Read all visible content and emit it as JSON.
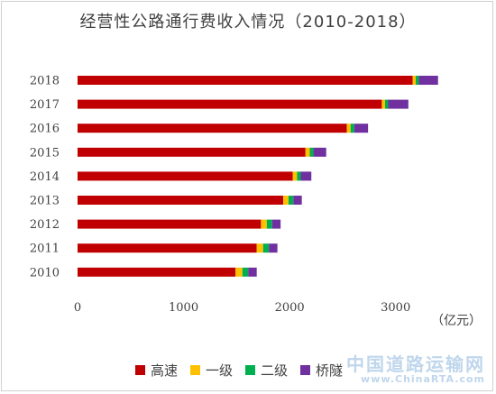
{
  "chart_data": {
    "type": "bar",
    "orientation": "horizontal",
    "stacked": true,
    "title": "经营性公路通行费收入情况（2010-2018）",
    "unit_label": "（亿元）",
    "categories": [
      "2010",
      "2011",
      "2012",
      "2013",
      "2014",
      "2015",
      "2016",
      "2017",
      "2018"
    ],
    "series": [
      {
        "name": "高速",
        "color": "#c00000",
        "values": [
          1490,
          1690,
          1730,
          1940,
          2030,
          2150,
          2540,
          2870,
          3160
        ]
      },
      {
        "name": "一级",
        "color": "#ffc000",
        "values": [
          65,
          60,
          55,
          50,
          40,
          40,
          35,
          30,
          30
        ]
      },
      {
        "name": "二级",
        "color": "#00b050",
        "values": [
          55,
          55,
          50,
          45,
          35,
          35,
          35,
          30,
          30
        ]
      },
      {
        "name": "桥隧",
        "color": "#7030a0",
        "values": [
          80,
          80,
          80,
          80,
          100,
          120,
          130,
          190,
          180
        ]
      }
    ],
    "xlim": [
      0,
      3700
    ],
    "xticks": [
      "0",
      "1000",
      "2000",
      "3000"
    ],
    "grid": false,
    "legend_position": "bottom"
  },
  "watermark": {
    "cn": "中国道路运输网",
    "en": "www.ChinaRTA.com"
  }
}
